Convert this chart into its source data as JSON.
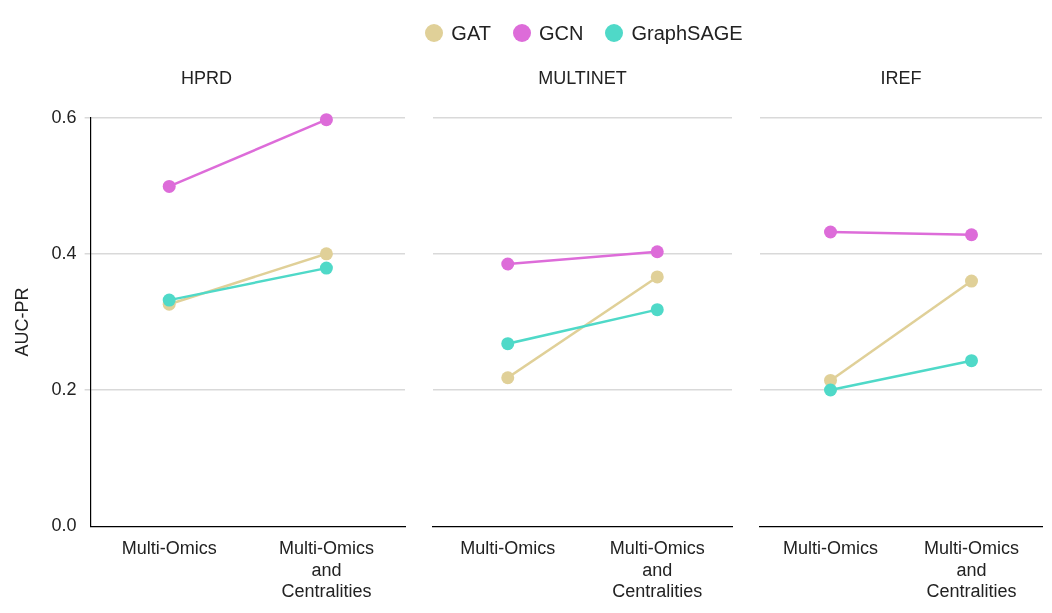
{
  "chart_data": [
    {
      "type": "line",
      "title": "HPRD",
      "ylabel": "AUC-PR",
      "categories": [
        "Multi-Omics",
        "Multi-Omics and Centralities"
      ],
      "ylim": [
        0,
        0.6
      ],
      "yticks": [
        {
          "value": 0,
          "label": "0.0"
        },
        {
          "value": 0.2,
          "label": "0.2"
        },
        {
          "value": 0.4,
          "label": "0.4"
        },
        {
          "value": 0.6,
          "label": "0.6"
        }
      ],
      "grid": "y",
      "legend": "top",
      "marker": "circle",
      "line_style": "solid",
      "series": [
        {
          "name": "GAT",
          "color": "#e0d098",
          "values": [
            0.326,
            0.4
          ]
        },
        {
          "name": "GCN",
          "color": "#dd6cd9",
          "values": [
            0.499,
            0.597
          ]
        },
        {
          "name": "GraphSAGE",
          "color": "#4fd9c8",
          "values": [
            0.332,
            0.379
          ]
        }
      ]
    },
    {
      "type": "line",
      "title": "MULTINET",
      "categories": [
        "Multi-Omics",
        "Multi-Omics and Centralities"
      ],
      "ylim": [
        0,
        0.6
      ],
      "yticks": [
        0,
        0.2,
        0.4,
        0.6
      ],
      "grid": "y",
      "tick_labels": "x",
      "marker": "circle",
      "line_style": "solid",
      "series": [
        {
          "color": "#e0d098",
          "values": [
            0.218,
            0.366
          ]
        },
        {
          "color": "#dd6cd9",
          "values": [
            0.385,
            0.403
          ]
        },
        {
          "color": "#4fd9c8",
          "values": [
            0.268,
            0.318
          ]
        }
      ]
    },
    {
      "type": "line",
      "title": "IREF",
      "categories": [
        "Multi-Omics",
        "Multi-Omics and Centralities"
      ],
      "ylim": [
        0,
        0.6
      ],
      "yticks": [
        0,
        0.2,
        0.4,
        0.6
      ],
      "grid": "y",
      "tick_labels": "x",
      "marker": "circle",
      "line_style": "solid",
      "series": [
        {
          "color": "#e0d098",
          "values": [
            0.214,
            0.36
          ]
        },
        {
          "color": "#dd6cd9",
          "values": [
            0.432,
            0.428
          ]
        },
        {
          "color": "#4fd9c8",
          "values": [
            0.2,
            0.243
          ]
        }
      ]
    }
  ]
}
